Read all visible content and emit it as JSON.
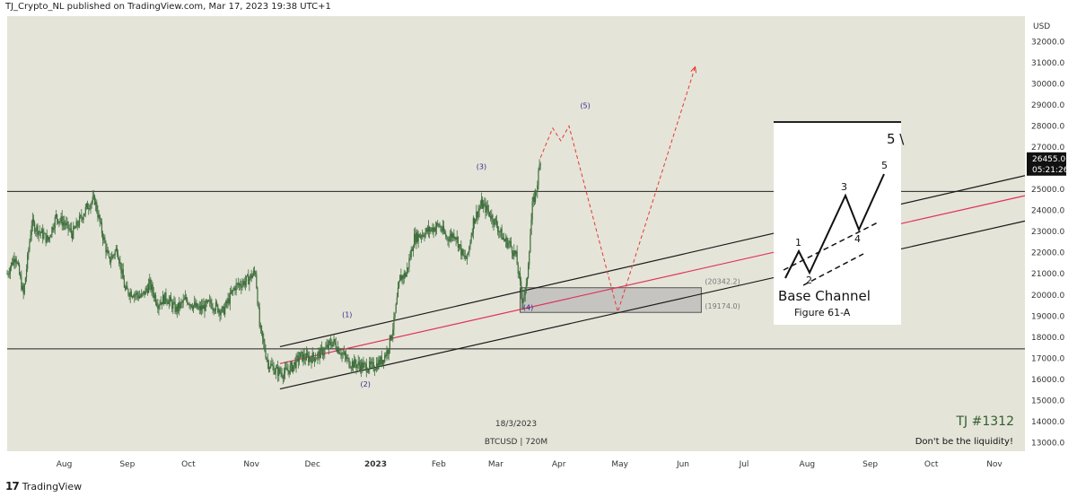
{
  "header": {
    "publisher": "TJ_Crypto_NL published on TradingView.com, Mar 17, 2023 19:38 UTC+1"
  },
  "footer": {
    "brand": "TradingView",
    "logo_text": "17"
  },
  "chart_data": {
    "type": "candlestick",
    "symbol_label": "BTCUSD | 720M",
    "date_label": "18/3/2023",
    "tag": "TJ #1312",
    "slogan": "Don't be the liquidity!",
    "currency_label": "USD",
    "ylim": [
      12600,
      33200
    ],
    "y_ticks": [
      13000,
      14000,
      15000,
      16000,
      17000,
      18000,
      19000,
      20000,
      21000,
      22000,
      23000,
      24000,
      25000,
      26000,
      27000,
      28000,
      29000,
      30000,
      31000,
      32000
    ],
    "x_ticks": [
      "Aug",
      "Sep",
      "Oct",
      "Nov",
      "Dec",
      "2023",
      "Feb",
      "Mar",
      "Apr",
      "May",
      "Jun",
      "Jul",
      "Aug",
      "Sep",
      "Oct",
      "Nov"
    ],
    "x_tick_days": [
      0,
      31,
      61,
      92,
      122,
      153,
      184,
      212,
      243,
      273,
      304,
      334,
      365,
      396,
      426,
      457
    ],
    "x_range_days": [
      -28,
      472
    ],
    "last_price": "26455.0",
    "countdown": "05:21:26",
    "price_path": [
      [
        -28,
        21000
      ],
      [
        -24,
        21900
      ],
      [
        -20,
        20000
      ],
      [
        -16,
        23400
      ],
      [
        -12,
        23000
      ],
      [
        -8,
        22600
      ],
      [
        -4,
        23700
      ],
      [
        0,
        23400
      ],
      [
        4,
        22900
      ],
      [
        8,
        23600
      ],
      [
        12,
        24300
      ],
      [
        15,
        24500
      ],
      [
        18,
        23200
      ],
      [
        22,
        21600
      ],
      [
        26,
        22200
      ],
      [
        30,
        20200
      ],
      [
        34,
        20100
      ],
      [
        38,
        19900
      ],
      [
        42,
        20500
      ],
      [
        46,
        19600
      ],
      [
        50,
        19900
      ],
      [
        55,
        19300
      ],
      [
        60,
        19800
      ],
      [
        66,
        19300
      ],
      [
        72,
        19600
      ],
      [
        78,
        19200
      ],
      [
        84,
        20400
      ],
      [
        90,
        20700
      ],
      [
        94,
        21100
      ],
      [
        96,
        18500
      ],
      [
        100,
        16800
      ],
      [
        104,
        16400
      ],
      [
        108,
        16300
      ],
      [
        112,
        16600
      ],
      [
        116,
        17100
      ],
      [
        120,
        17000
      ],
      [
        124,
        17100
      ],
      [
        128,
        17400
      ],
      [
        132,
        17800
      ],
      [
        136,
        17300
      ],
      [
        140,
        16800
      ],
      [
        144,
        16700
      ],
      [
        148,
        16600
      ],
      [
        152,
        16600
      ],
      [
        156,
        16900
      ],
      [
        159,
        17400
      ],
      [
        162,
        18700
      ],
      [
        165,
        20800
      ],
      [
        168,
        21000
      ],
      [
        172,
        22700
      ],
      [
        176,
        22900
      ],
      [
        180,
        23100
      ],
      [
        184,
        23300
      ],
      [
        188,
        22700
      ],
      [
        192,
        22900
      ],
      [
        196,
        21800
      ],
      [
        198,
        21700
      ],
      [
        201,
        23500
      ],
      [
        205,
        24300
      ],
      [
        208,
        24000
      ],
      [
        212,
        23400
      ],
      [
        216,
        22600
      ],
      [
        219,
        22400
      ],
      [
        222,
        21800
      ],
      [
        225,
        19800
      ],
      [
        227,
        20300
      ],
      [
        230,
        24200
      ],
      [
        232,
        25000
      ],
      [
        234,
        26455
      ]
    ],
    "horizontal_lines": [
      24900,
      17450
    ],
    "channel": {
      "upper": [
        [
          106,
          17550
        ],
        [
          472,
          25650
        ]
      ],
      "middle": [
        [
          106,
          16750
        ],
        [
          472,
          24700
        ]
      ],
      "lower": [
        [
          106,
          15550
        ],
        [
          472,
          23500
        ]
      ]
    },
    "forecast_path": [
      [
        234,
        26500
      ],
      [
        240,
        27900
      ],
      [
        244,
        27300
      ],
      [
        248,
        28000
      ],
      [
        272,
        19200
      ],
      [
        310,
        30800
      ]
    ],
    "zone": {
      "x0": 224,
      "x1": 313,
      "y_top": 20342.2,
      "y_bottom": 19174.0
    },
    "zone_labels": {
      "top": "(20342.2)",
      "bottom": "(19174.0)"
    },
    "wave_labels": [
      {
        "label": "(1)",
        "day": 139,
        "price": 18950
      },
      {
        "label": "(2)",
        "day": 148,
        "price": 15650
      },
      {
        "label": "(3)",
        "day": 205,
        "price": 25950
      },
      {
        "label": "(4)",
        "day": 228,
        "price": 19300
      },
      {
        "label": "(5)",
        "day": 256,
        "price": 28850
      }
    ],
    "inset": {
      "title": "Base Channel",
      "subtitle": "Figure 61-A",
      "points": [
        "1",
        "2",
        "3",
        "4",
        "5"
      ],
      "corner_text": "5 \\"
    },
    "colors": {
      "background": "#e5e4d8",
      "candles": "#3d6e3c",
      "channel": "#1a1a1a",
      "middle_line": "#e0325a",
      "forecast": "#e53935",
      "zone_fill": "#b9b9b9",
      "wave_labels": "#2e2a8c"
    },
    "title": "",
    "xlabel": "",
    "ylabel": "USD",
    "grid": false
  }
}
